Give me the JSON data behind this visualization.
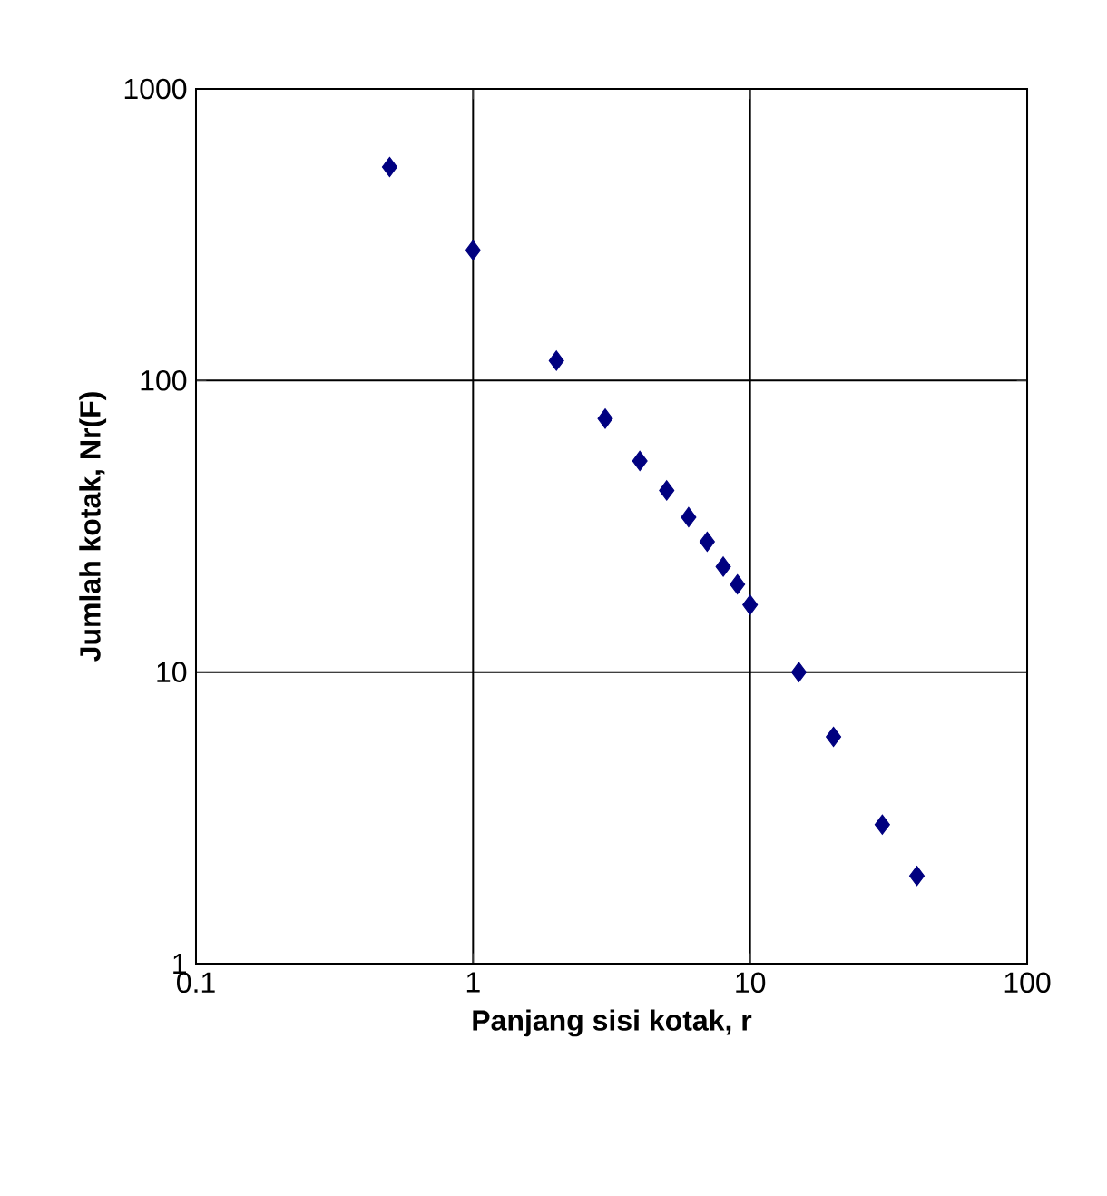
{
  "chart_data": {
    "type": "scatter",
    "xlabel": "Panjang sisi kotak, r",
    "ylabel": "Jumlah kotak, Nr(F)",
    "log": "xy",
    "grid": true,
    "marker": "diamond",
    "x": [
      0.5,
      1,
      2,
      3,
      4,
      5,
      6,
      7,
      8,
      9,
      10,
      15,
      20,
      30,
      40
    ],
    "values": [
      540,
      280,
      117,
      74,
      53,
      42,
      34,
      28,
      23,
      20,
      17,
      10,
      6,
      3,
      2
    ],
    "color": "#000080",
    "xlim": [
      0.1,
      100
    ],
    "ylim": [
      1,
      1000
    ],
    "xticks": [
      0.1,
      1,
      10,
      100
    ],
    "yticks": [
      1,
      10,
      100,
      1000
    ]
  }
}
